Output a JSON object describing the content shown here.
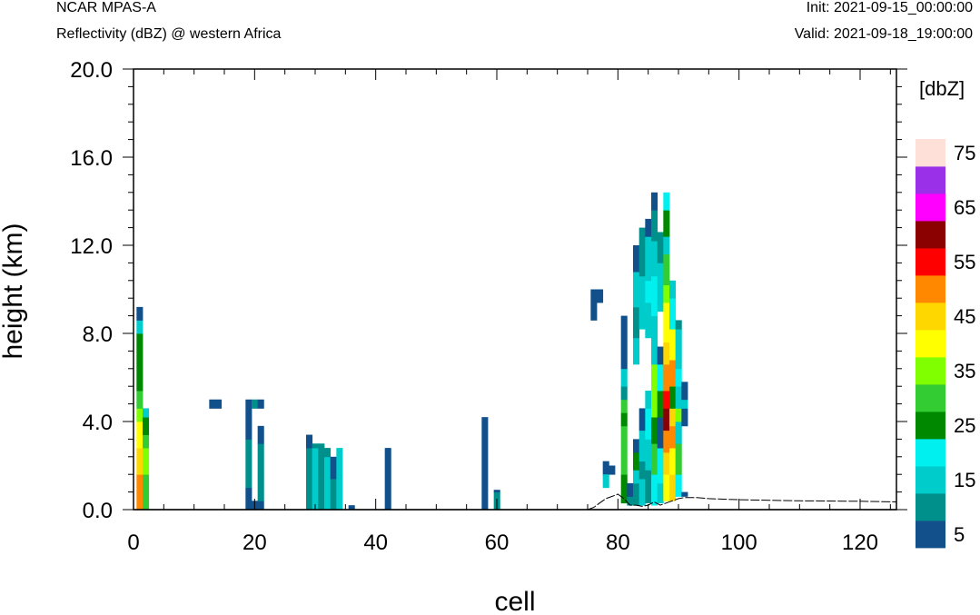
{
  "header": {
    "model": "NCAR MPAS-A",
    "subtitle": "Reflectivity (dBZ) @ western Africa",
    "init": "Init: 2021-09-15_00:00:00",
    "valid": "Valid: 2021-09-18_19:00:00"
  },
  "chart_data": {
    "type": "heatmap",
    "xlabel": "cell",
    "ylabel": "height (km)",
    "xlim": [
      0,
      126
    ],
    "ylim": [
      0,
      20
    ],
    "x_ticks": [
      0,
      20,
      40,
      60,
      80,
      100,
      120
    ],
    "x_tick_labels": [
      "0",
      "20",
      "40",
      "60",
      "80",
      "100",
      "120"
    ],
    "y_ticks": [
      0,
      4,
      8,
      12,
      16,
      20
    ],
    "y_tick_labels": [
      "0.0",
      "4.0",
      "8.0",
      "12.0",
      "16.0",
      "20.0"
    ],
    "cell_height_km": 0.4,
    "colorbar": {
      "unit": "[dbZ]",
      "levels": [
        5,
        10,
        15,
        20,
        25,
        30,
        35,
        40,
        45,
        50,
        55,
        60,
        65,
        70,
        75
      ],
      "colors": [
        "#12508c",
        "#00908c",
        "#00cccc",
        "#00f0f0",
        "#008800",
        "#33cc33",
        "#7fff00",
        "#ffff00",
        "#ffd700",
        "#ff8800",
        "#ff0000",
        "#8b0000",
        "#ff00ff",
        "#9a30e8",
        "#ffe0d8"
      ],
      "labels": [
        "5",
        "15",
        "25",
        "35",
        "45",
        "55",
        "65",
        "75"
      ]
    },
    "columns": [
      {
        "x": 1,
        "ranges": [
          [
            0,
            1.6,
            9
          ],
          [
            1.6,
            2.8,
            8
          ],
          [
            2.8,
            4.0,
            7
          ],
          [
            4.0,
            4.6,
            6
          ],
          [
            4.6,
            5.4,
            5
          ],
          [
            5.4,
            8.0,
            4
          ],
          [
            8.0,
            8.6,
            2
          ],
          [
            8.6,
            9.2,
            0
          ]
        ]
      },
      {
        "x": 2,
        "ranges": [
          [
            0,
            1.6,
            5
          ],
          [
            1.6,
            2.8,
            6
          ],
          [
            2.8,
            3.4,
            5
          ],
          [
            3.4,
            4.2,
            4
          ],
          [
            4.2,
            4.6,
            2
          ]
        ]
      },
      {
        "x": 13,
        "ranges": [
          [
            4.6,
            5.0,
            0
          ]
        ]
      },
      {
        "x": 14,
        "ranges": [
          [
            4.6,
            5.0,
            0
          ]
        ]
      },
      {
        "x": 19,
        "ranges": [
          [
            0,
            0.4,
            0
          ],
          [
            0.4,
            1.0,
            0
          ],
          [
            1.0,
            3.2,
            1
          ],
          [
            3.2,
            4.6,
            0
          ],
          [
            4.6,
            5.0,
            0
          ]
        ]
      },
      {
        "x": 20,
        "ranges": [
          [
            0,
            0.4,
            0
          ],
          [
            4.6,
            5.0,
            1
          ]
        ]
      },
      {
        "x": 21,
        "ranges": [
          [
            0,
            0.4,
            0
          ],
          [
            0.4,
            1.4,
            1
          ],
          [
            1.4,
            3.0,
            1
          ],
          [
            3.0,
            3.8,
            0
          ],
          [
            4.6,
            5.0,
            0
          ]
        ]
      },
      {
        "x": 29,
        "ranges": [
          [
            0,
            2.8,
            1
          ],
          [
            2.8,
            3.4,
            0
          ]
        ]
      },
      {
        "x": 30,
        "ranges": [
          [
            0,
            2.8,
            2
          ],
          [
            2.8,
            3.0,
            1
          ]
        ]
      },
      {
        "x": 31,
        "ranges": [
          [
            0,
            2.6,
            1
          ],
          [
            2.6,
            3.0,
            1
          ]
        ]
      },
      {
        "x": 32,
        "ranges": [
          [
            0,
            2.4,
            2
          ],
          [
            2.4,
            2.8,
            1
          ]
        ]
      },
      {
        "x": 33,
        "ranges": [
          [
            0,
            1.4,
            1
          ],
          [
            1.4,
            2.4,
            0
          ]
        ]
      },
      {
        "x": 34,
        "ranges": [
          [
            0,
            2.8,
            2
          ]
        ]
      },
      {
        "x": 36,
        "ranges": [
          [
            0,
            0.2,
            0
          ]
        ]
      },
      {
        "x": 42,
        "ranges": [
          [
            0,
            2.8,
            0
          ]
        ]
      },
      {
        "x": 58,
        "ranges": [
          [
            0,
            4.2,
            0
          ]
        ]
      },
      {
        "x": 60,
        "ranges": [
          [
            0,
            0.8,
            1
          ],
          [
            0.8,
            0.9,
            0
          ]
        ]
      },
      {
        "x": 76,
        "ranges": [
          [
            8.6,
            9.4,
            0
          ],
          [
            9.4,
            10.0,
            0
          ]
        ]
      },
      {
        "x": 77,
        "ranges": [
          [
            9.4,
            10.0,
            0
          ]
        ]
      },
      {
        "x": 78,
        "ranges": [
          [
            1.6,
            2.2,
            0
          ],
          [
            1.0,
            1.6,
            2
          ]
        ]
      },
      {
        "x": 79,
        "ranges": [
          [
            1.6,
            2.0,
            0
          ]
        ]
      },
      {
        "x": 81,
        "ranges": [
          [
            0.3,
            1.6,
            4
          ],
          [
            1.6,
            3.8,
            5
          ],
          [
            3.8,
            4.4,
            4
          ],
          [
            4.4,
            5.0,
            5
          ],
          [
            5.0,
            5.6,
            1
          ],
          [
            5.6,
            6.4,
            2
          ],
          [
            6.4,
            8.8,
            0
          ]
        ]
      },
      {
        "x": 82,
        "ranges": [
          [
            0.2,
            0.6,
            1
          ],
          [
            0.6,
            1.2,
            0
          ]
        ]
      },
      {
        "x": 83,
        "ranges": [
          [
            0.2,
            1.2,
            1
          ],
          [
            1.2,
            1.8,
            2
          ],
          [
            1.8,
            2.6,
            4
          ],
          [
            2.6,
            3.2,
            0
          ],
          [
            6.6,
            7.8,
            2
          ],
          [
            7.8,
            9.2,
            1
          ],
          [
            9.2,
            10.8,
            2
          ],
          [
            10.8,
            12.0,
            0
          ]
        ]
      },
      {
        "x": 84,
        "ranges": [
          [
            0.2,
            1.4,
            2
          ],
          [
            1.4,
            2.2,
            1
          ],
          [
            2.2,
            3.6,
            2
          ],
          [
            3.6,
            4.6,
            0
          ],
          [
            8.2,
            10.6,
            2
          ],
          [
            10.6,
            12.8,
            1
          ]
        ]
      },
      {
        "x": 85,
        "ranges": [
          [
            0.3,
            1.8,
            1
          ],
          [
            1.8,
            3.2,
            2
          ],
          [
            3.2,
            4.6,
            3
          ],
          [
            4.6,
            5.4,
            2
          ],
          [
            7.8,
            9.4,
            2
          ],
          [
            9.4,
            10.4,
            3
          ],
          [
            10.4,
            12.4,
            2
          ],
          [
            12.4,
            13.2,
            0
          ]
        ]
      },
      {
        "x": 86,
        "ranges": [
          [
            0.2,
            1.6,
            3
          ],
          [
            1.6,
            3.0,
            5
          ],
          [
            3.0,
            4.2,
            4
          ],
          [
            4.2,
            6.6,
            6
          ],
          [
            6.6,
            8.8,
            2
          ],
          [
            8.8,
            10.6,
            3
          ],
          [
            10.6,
            12.2,
            2
          ],
          [
            12.2,
            13.6,
            1
          ],
          [
            13.6,
            14.4,
            0
          ]
        ]
      },
      {
        "x": 87,
        "ranges": [
          [
            0.3,
            1.2,
            2
          ],
          [
            1.2,
            2.8,
            3
          ],
          [
            2.8,
            4.2,
            0
          ],
          [
            4.2,
            5.4,
            4
          ],
          [
            5.4,
            6.6,
            3
          ],
          [
            6.6,
            7.4,
            0
          ],
          [
            9.0,
            11.2,
            2
          ],
          [
            11.2,
            12.6,
            1
          ]
        ]
      },
      {
        "x": 88,
        "ranges": [
          [
            0.4,
            1.6,
            7
          ],
          [
            1.6,
            2.6,
            8
          ],
          [
            2.6,
            3.6,
            9
          ],
          [
            3.6,
            4.6,
            11
          ],
          [
            4.6,
            5.4,
            10
          ],
          [
            5.4,
            6.6,
            9
          ],
          [
            6.6,
            7.6,
            8
          ],
          [
            7.6,
            9.4,
            7
          ],
          [
            9.4,
            10.2,
            6
          ],
          [
            10.2,
            11.6,
            5
          ],
          [
            11.6,
            12.4,
            2
          ],
          [
            12.4,
            13.6,
            4
          ],
          [
            13.6,
            14.4,
            3
          ]
        ]
      },
      {
        "x": 89,
        "ranges": [
          [
            0.4,
            1.6,
            8
          ],
          [
            1.6,
            2.8,
            7
          ],
          [
            2.8,
            3.8,
            9
          ],
          [
            3.8,
            4.6,
            8
          ],
          [
            4.6,
            5.6,
            4
          ],
          [
            5.6,
            6.8,
            9
          ],
          [
            6.8,
            8.2,
            7
          ],
          [
            8.2,
            9.6,
            3
          ],
          [
            9.6,
            10.4,
            2
          ]
        ]
      },
      {
        "x": 90,
        "ranges": [
          [
            0.6,
            1.6,
            3
          ],
          [
            1.6,
            3.0,
            5
          ],
          [
            3.0,
            4.0,
            2
          ],
          [
            4.0,
            4.6,
            6
          ],
          [
            4.6,
            5.6,
            2
          ],
          [
            5.6,
            6.4,
            3
          ],
          [
            6.4,
            8.2,
            2
          ],
          [
            8.2,
            8.6,
            1
          ]
        ]
      },
      {
        "x": 91,
        "ranges": [
          [
            0.6,
            0.8,
            0
          ],
          [
            3.8,
            4.6,
            0
          ],
          [
            4.6,
            5.0,
            2
          ],
          [
            5.0,
            5.8,
            0
          ]
        ]
      }
    ],
    "terrain": [
      [
        75,
        0
      ],
      [
        76,
        0.1
      ],
      [
        77,
        0.3
      ],
      [
        78,
        0.5
      ],
      [
        79,
        0.6
      ],
      [
        80,
        0.7
      ],
      [
        81,
        0.5
      ],
      [
        82,
        0.2
      ],
      [
        83,
        0.2
      ],
      [
        84,
        0.15
      ],
      [
        85,
        0.2
      ],
      [
        86,
        0.35
      ],
      [
        87,
        0.2
      ],
      [
        88,
        0.3
      ],
      [
        89,
        0.4
      ],
      [
        90,
        0.5
      ],
      [
        91,
        0.55
      ],
      [
        93,
        0.55
      ],
      [
        95,
        0.5
      ],
      [
        100,
        0.45
      ],
      [
        110,
        0.4
      ],
      [
        120,
        0.38
      ],
      [
        126,
        0.35
      ]
    ]
  }
}
